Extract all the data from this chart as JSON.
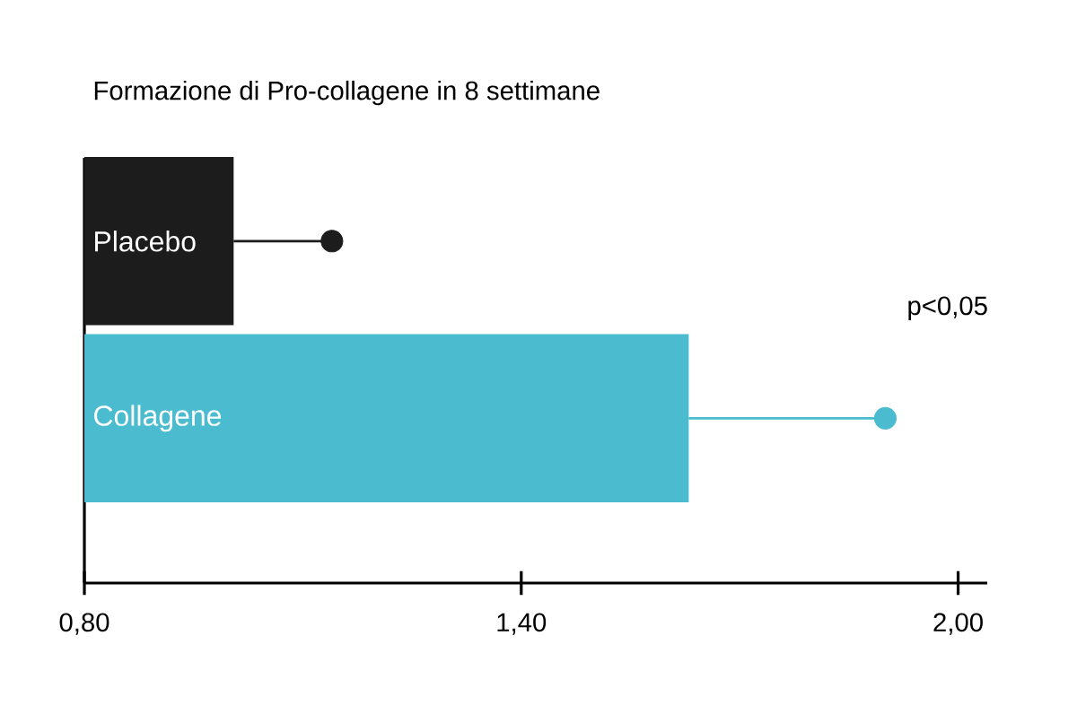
{
  "chart_data": {
    "type": "bar",
    "orientation": "horizontal",
    "title": "Formazione di Pro-collagene in 8 settimane",
    "categories": [
      "Placebo",
      "Collagene"
    ],
    "series": [
      {
        "values": [
          1.005,
          1.63
        ],
        "colors": [
          "#1c1c1c",
          "#4bbccf"
        ]
      },
      {
        "type": "scatter",
        "marker": "circle",
        "values": [
          1.14,
          1.9
        ],
        "colors": [
          "#1c1c1c",
          "#4bbccf"
        ],
        "errors": [
          [
            1.005,
            1.14
          ],
          [
            1.63,
            1.9
          ]
        ]
      }
    ],
    "xlim": [
      0.8,
      2.04
    ],
    "xticks": [
      {
        "value": 0.8,
        "label": "0,80"
      },
      {
        "value": 1.4,
        "label": "1,40"
      },
      {
        "value": 2.0,
        "label": "2,00"
      }
    ],
    "annotations": [
      "p<0,05"
    ]
  }
}
